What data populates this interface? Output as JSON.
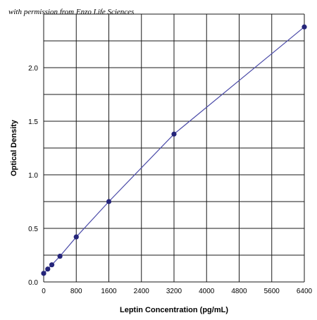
{
  "credit": "with permission from Enzo Life Sciences",
  "chart_data": {
    "type": "line",
    "title": "",
    "xlabel": "Leptin Concentration (pg/mL)",
    "ylabel": "Optical Density",
    "xlim": [
      0,
      6400
    ],
    "ylim": [
      0,
      2.5
    ],
    "x_ticks": [
      0,
      800,
      1600,
      2400,
      3200,
      4000,
      4800,
      5600,
      6400
    ],
    "x_tick_labels": [
      "0",
      "800",
      "1600",
      "2400",
      "3200",
      "4000",
      "4800",
      "5600",
      "6400"
    ],
    "y_ticks": [
      0,
      0.5,
      1.0,
      1.5,
      2.0
    ],
    "y_tick_labels": [
      "0.0",
      "0.5",
      "1.0",
      "1.5",
      "2.0"
    ],
    "grid": true,
    "series": [
      {
        "color": "#4a4aa8",
        "marker_color": "#25257a",
        "x": [
          0,
          100,
          200,
          400,
          800,
          1600,
          3200,
          6400
        ],
        "y": [
          0.08,
          0.12,
          0.16,
          0.24,
          0.42,
          0.75,
          1.38,
          2.38
        ]
      }
    ]
  }
}
